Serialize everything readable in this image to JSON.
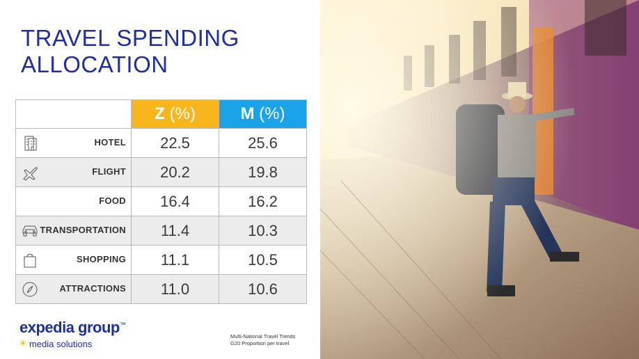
{
  "title": {
    "line1": "TRAVEL SPENDING",
    "line2": "ALLOCATION"
  },
  "chart_data": {
    "type": "table",
    "columns": [
      {
        "label": "Z",
        "unit": "(%)",
        "color": "#f8b51c"
      },
      {
        "label": "M",
        "unit": "(%)",
        "color": "#1aa3e8"
      }
    ],
    "rows": [
      {
        "label": "HOTEL",
        "icon": "hotel-icon",
        "z": "22.5",
        "m": "25.6"
      },
      {
        "label": "FLIGHT",
        "icon": "airplane-icon",
        "z": "20.2",
        "m": "19.8"
      },
      {
        "label": "FOOD",
        "icon": "",
        "z": "16.4",
        "m": "16.2"
      },
      {
        "label": "TRANSPORTATION",
        "icon": "car-icon",
        "z": "11.4",
        "m": "10.3"
      },
      {
        "label": "SHOPPING",
        "icon": "shopping-bag-icon",
        "z": "11.1",
        "m": "10.5"
      },
      {
        "label": "ATTRACTIONS",
        "icon": "compass-icon",
        "z": "11.0",
        "m": "10.6"
      }
    ]
  },
  "logo": {
    "brand": "expedia group",
    "trademark": "™",
    "sub": "media solutions"
  },
  "source": {
    "line1": "Multi-National Travel Trends",
    "line2": "G20 Proportion per travel"
  },
  "colors": {
    "title": "#1f2fa3",
    "z_header": "#f8b51c",
    "m_header": "#1aa3e8"
  }
}
